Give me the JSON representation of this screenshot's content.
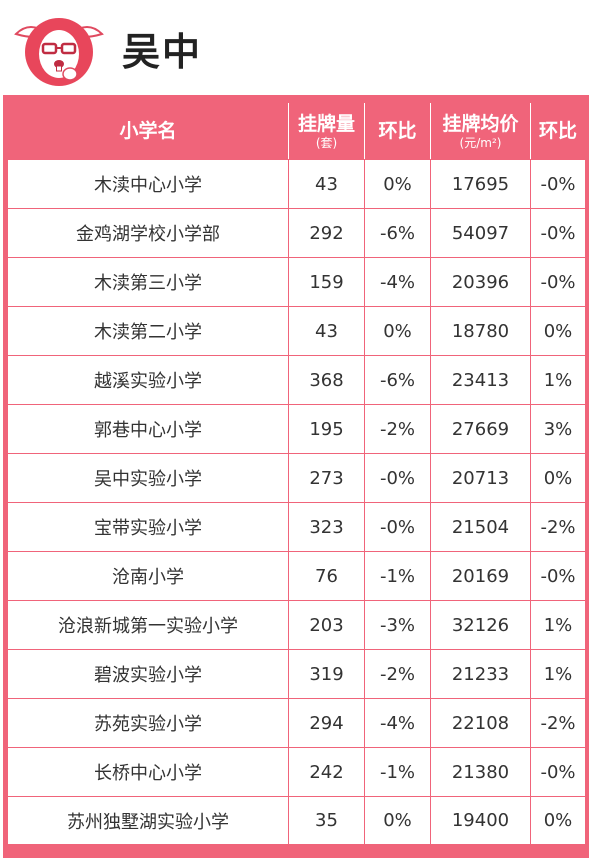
{
  "header": {
    "title": "吴中"
  },
  "colors": {
    "accent": "#f0647a",
    "text": "#333333",
    "title": "#222222"
  },
  "table": {
    "columns": [
      {
        "label": "小学名",
        "sub": ""
      },
      {
        "label": "挂牌量",
        "sub": "(套)"
      },
      {
        "label": "环比",
        "sub": ""
      },
      {
        "label": "挂牌均价",
        "sub": "(元/m²)"
      },
      {
        "label": "环比",
        "sub": ""
      }
    ],
    "rows": [
      {
        "name": "木渎中心小学",
        "count": "43",
        "count_mom": "0%",
        "price": "17695",
        "price_mom": "-0%"
      },
      {
        "name": "金鸡湖学校小学部",
        "count": "292",
        "count_mom": "-6%",
        "price": "54097",
        "price_mom": "-0%"
      },
      {
        "name": "木渎第三小学",
        "count": "159",
        "count_mom": "-4%",
        "price": "20396",
        "price_mom": "-0%"
      },
      {
        "name": "木渎第二小学",
        "count": "43",
        "count_mom": "0%",
        "price": "18780",
        "price_mom": "0%"
      },
      {
        "name": "越溪实验小学",
        "count": "368",
        "count_mom": "-6%",
        "price": "23413",
        "price_mom": "1%"
      },
      {
        "name": "郭巷中心小学",
        "count": "195",
        "count_mom": "-2%",
        "price": "27669",
        "price_mom": "3%"
      },
      {
        "name": "吴中实验小学",
        "count": "273",
        "count_mom": "-0%",
        "price": "20713",
        "price_mom": "0%"
      },
      {
        "name": "宝带实验小学",
        "count": "323",
        "count_mom": "-0%",
        "price": "21504",
        "price_mom": "-2%"
      },
      {
        "name": "沧南小学",
        "count": "76",
        "count_mom": "-1%",
        "price": "20169",
        "price_mom": "-0%"
      },
      {
        "name": "沧浪新城第一实验小学",
        "count": "203",
        "count_mom": "-3%",
        "price": "32126",
        "price_mom": "1%"
      },
      {
        "name": "碧波实验小学",
        "count": "319",
        "count_mom": "-2%",
        "price": "21233",
        "price_mom": "1%"
      },
      {
        "name": "苏苑实验小学",
        "count": "294",
        "count_mom": "-4%",
        "price": "22108",
        "price_mom": "-2%"
      },
      {
        "name": "长桥中心小学",
        "count": "242",
        "count_mom": "-1%",
        "price": "21380",
        "price_mom": "-0%"
      },
      {
        "name": "苏州独墅湖实验小学",
        "count": "35",
        "count_mom": "0%",
        "price": "19400",
        "price_mom": "0%"
      }
    ]
  },
  "icons": {
    "logo": "rabbit-mascot-icon"
  }
}
